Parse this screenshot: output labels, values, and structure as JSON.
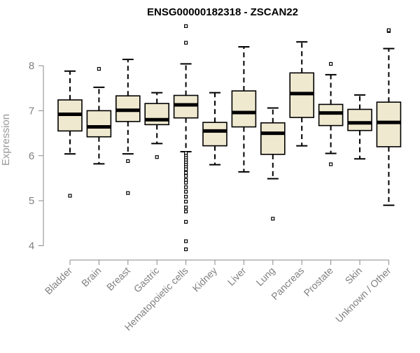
{
  "chart_data": {
    "type": "box",
    "title": "ENSG00000182318 - ZSCAN22",
    "xlabel": "",
    "ylabel": "Expression",
    "ylim": [
      3.8,
      8.95
    ],
    "yticks": [
      4,
      5,
      6,
      7,
      8
    ],
    "grid": false,
    "legend": "none",
    "colors": {
      "box_fill": "#efe9d0",
      "stroke": "#000000",
      "axis": "#888888"
    },
    "categories": [
      "Bladder",
      "Brain",
      "Breast",
      "Gastric",
      "Hematopoietic cells",
      "Kidney",
      "Liver",
      "Lung",
      "Pancreas",
      "Prostate",
      "Skin",
      "Unknown / Other"
    ],
    "boxes": [
      {
        "whisker_low": 6.04,
        "q1": 6.55,
        "median": 6.92,
        "q3": 7.24,
        "whisker_high": 7.88,
        "outliers": [
          5.11
        ]
      },
      {
        "whisker_low": 5.82,
        "q1": 6.42,
        "median": 6.64,
        "q3": 7.0,
        "whisker_high": 7.52,
        "outliers": [
          7.93
        ]
      },
      {
        "whisker_low": 6.04,
        "q1": 6.76,
        "median": 7.01,
        "q3": 7.33,
        "whisker_high": 8.14,
        "outliers": [
          5.88,
          5.17
        ]
      },
      {
        "whisker_low": 6.27,
        "q1": 6.69,
        "median": 6.8,
        "q3": 7.16,
        "whisker_high": 7.4,
        "outliers": [
          5.97
        ]
      },
      {
        "whisker_low": 6.09,
        "q1": 6.84,
        "median": 7.13,
        "q3": 7.34,
        "whisker_high": 8.04,
        "outliers": [
          8.51,
          8.88,
          6.06,
          6.0,
          5.95,
          5.9,
          5.85,
          5.8,
          5.75,
          5.7,
          5.62,
          5.55,
          5.46,
          5.4,
          5.3,
          5.2,
          5.09,
          4.98,
          4.85,
          4.76,
          4.53,
          4.1,
          3.92
        ]
      },
      {
        "whisker_low": 5.8,
        "q1": 6.22,
        "median": 6.55,
        "q3": 6.74,
        "whisker_high": 7.4,
        "outliers": []
      },
      {
        "whisker_low": 5.64,
        "q1": 6.64,
        "median": 6.96,
        "q3": 7.44,
        "whisker_high": 8.42,
        "outliers": []
      },
      {
        "whisker_low": 5.49,
        "q1": 6.03,
        "median": 6.5,
        "q3": 6.73,
        "whisker_high": 7.06,
        "outliers": [
          4.6
        ]
      },
      {
        "whisker_low": 6.22,
        "q1": 6.85,
        "median": 7.38,
        "q3": 7.84,
        "whisker_high": 8.53,
        "outliers": []
      },
      {
        "whisker_low": 6.05,
        "q1": 6.67,
        "median": 6.95,
        "q3": 7.14,
        "whisker_high": 7.8,
        "outliers": [
          8.04,
          5.81
        ]
      },
      {
        "whisker_low": 5.93,
        "q1": 6.56,
        "median": 6.73,
        "q3": 7.03,
        "whisker_high": 7.35,
        "outliers": []
      },
      {
        "whisker_low": 4.9,
        "q1": 6.2,
        "median": 6.74,
        "q3": 7.19,
        "whisker_high": 8.38,
        "outliers": [
          8.77,
          8.79
        ]
      }
    ]
  }
}
